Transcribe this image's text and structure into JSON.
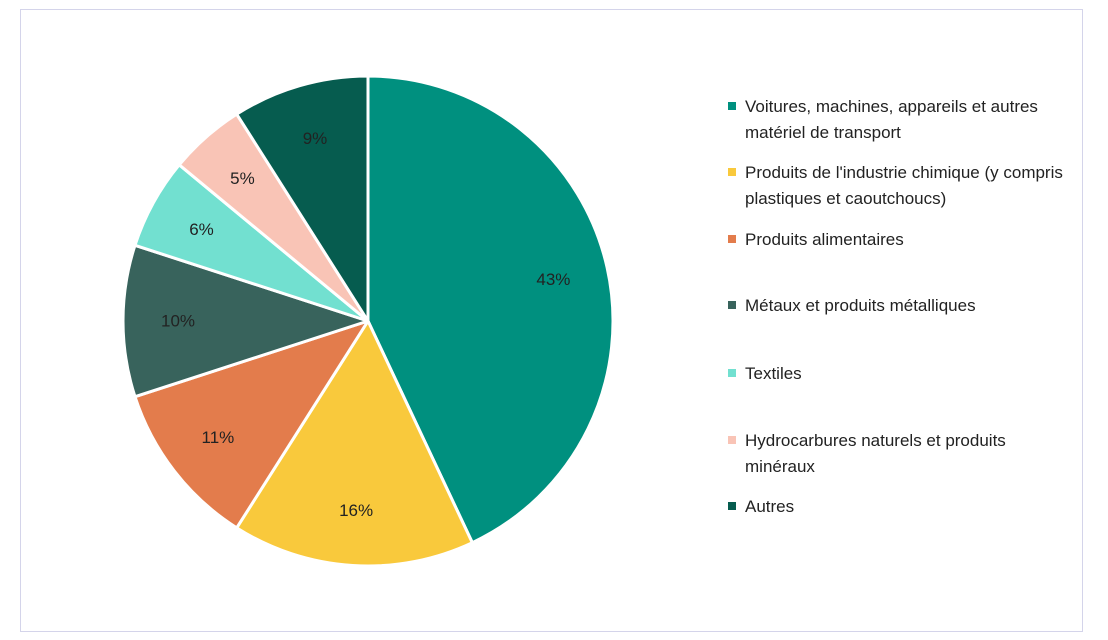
{
  "chart_data": {
    "type": "pie",
    "start_angle_deg": 0,
    "direction": "clockwise",
    "slices": [
      {
        "label": "Voitures, machines, appareils et autres matériel de transport",
        "value": 43,
        "display": "43%",
        "color": "#00907f"
      },
      {
        "label": "Produits de l'industrie chimique (y compris plastiques et caoutchoucs)",
        "value": 16,
        "display": "16%",
        "color": "#f9c93c"
      },
      {
        "label": "Produits alimentaires",
        "value": 11,
        "display": "11%",
        "color": "#e37c4c"
      },
      {
        "label": "Métaux et produits métalliques",
        "value": 10,
        "display": "10%",
        "color": "#38635c"
      },
      {
        "label": "Textiles",
        "value": 6,
        "display": "6%",
        "color": "#72e0d0"
      },
      {
        "label": "Hydrocarbures naturels et produits minéraux",
        "value": 5,
        "display": "5%",
        "color": "#f9c4b6"
      },
      {
        "label": "Autres",
        "value": 9,
        "display": "9%",
        "color": "#065c4f"
      }
    ],
    "legend_position": "right"
  }
}
